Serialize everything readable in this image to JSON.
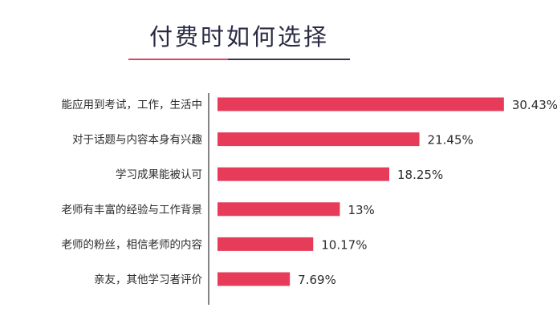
{
  "colors": {
    "bar": "#e63c5a",
    "title_text": "#2a2a44",
    "underline_left": "#d9456b",
    "underline_right": "#3d3352",
    "axis": "#333333",
    "text": "#2b2b2b"
  },
  "chart_data": {
    "type": "bar",
    "orientation": "horizontal",
    "title": "付费时如何选择",
    "xlabel": "",
    "ylabel": "",
    "grid": false,
    "legend": "none",
    "xlim": [
      0,
      40.76
    ],
    "categories": [
      "能应用到考试，工作，生活中",
      "对于话题与内容本身有兴趣",
      "学习成果能被认可",
      "老师有丰富的经验与工作背景",
      "老师的粉丝，相信老师的内容",
      "亲友，其他学习者评价"
    ],
    "values": [
      30.43,
      21.45,
      18.25,
      13,
      10.17,
      7.69
    ],
    "value_labels": [
      "30.43%",
      "21.45%",
      "18.25%",
      "13%",
      "10.17%",
      "7.69%"
    ]
  }
}
